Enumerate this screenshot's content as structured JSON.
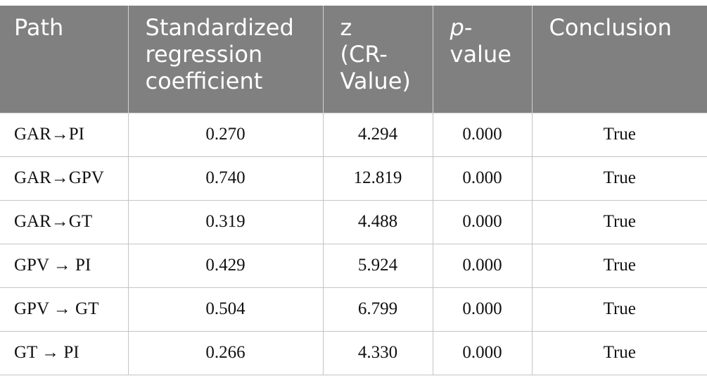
{
  "table": {
    "header": [
      "Path",
      "Standardized regression coefficient",
      "z (CR-Value)",
      {
        "italic": "p",
        "text": "-value"
      },
      "Conclusion"
    ],
    "rows": [
      [
        "GAR→PI",
        "0.270",
        "4.294",
        "0.000",
        "True"
      ],
      [
        "GAR→GPV",
        "0.740",
        "12.819",
        "0.000",
        "True"
      ],
      [
        "GAR→GT",
        "0.319",
        "4.488",
        "0.000",
        "True"
      ],
      [
        "GPV → PI",
        "0.429",
        "5.924",
        "0.000",
        "True"
      ],
      [
        "GPV → GT",
        "0.504",
        "6.799",
        "0.000",
        "True"
      ],
      [
        "GT → PI",
        "0.266",
        "4.330",
        "0.000",
        "True"
      ]
    ]
  }
}
